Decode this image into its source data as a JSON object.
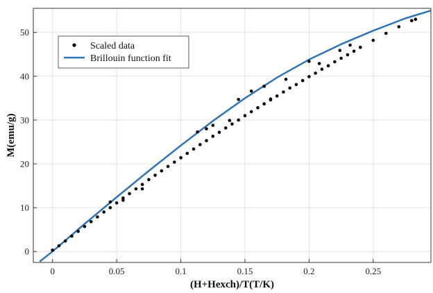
{
  "chart_data": {
    "type": "scatter",
    "title": "",
    "xlabel": "(H+Hexch)/T(T/K)",
    "ylabel": "M(emu/g)",
    "xlim": [
      -0.015,
      0.295
    ],
    "ylim": [
      -2.5,
      55.5
    ],
    "xticks": [
      0,
      0.05,
      0.1,
      0.15,
      0.2,
      0.25
    ],
    "xtick_labels": [
      "0",
      "0.05",
      "0.1",
      "0.15",
      "0.2",
      "0.25"
    ],
    "yticks": [
      0,
      10,
      20,
      30,
      40,
      50
    ],
    "ytick_labels": [
      "0",
      "10",
      "20",
      "30",
      "40",
      "50"
    ],
    "grid": true,
    "legend_position": "top-left",
    "series": [
      {
        "name": "Scaled data",
        "kind": "scatter",
        "color": "#000000",
        "x": [
          0.0,
          0.005,
          0.01,
          0.015,
          0.02,
          0.025,
          0.03,
          0.035,
          0.04,
          0.045,
          0.05,
          0.055,
          0.06,
          0.065,
          0.07,
          0.075,
          0.08,
          0.085,
          0.09,
          0.095,
          0.1,
          0.105,
          0.11,
          0.115,
          0.12,
          0.125,
          0.13,
          0.135,
          0.14,
          0.145,
          0.15,
          0.155,
          0.16,
          0.165,
          0.17,
          0.175,
          0.18,
          0.185,
          0.19,
          0.195,
          0.2,
          0.205,
          0.21,
          0.215,
          0.22,
          0.225,
          0.23,
          0.235,
          0.24,
          0.25,
          0.26,
          0.27,
          0.28,
          0.283,
          0.045,
          0.055,
          0.07,
          0.113,
          0.12,
          0.125,
          0.138,
          0.145,
          0.155,
          0.165,
          0.17,
          0.182,
          0.2,
          0.208,
          0.224,
          0.232
        ],
        "y": [
          0.3,
          1.3,
          2.4,
          3.5,
          4.6,
          5.7,
          6.8,
          7.9,
          9.0,
          10.0,
          11.1,
          12.2,
          13.2,
          14.3,
          15.3,
          16.4,
          17.4,
          18.4,
          19.4,
          20.4,
          21.4,
          22.4,
          23.4,
          24.4,
          25.3,
          26.3,
          27.2,
          28.2,
          29.1,
          30.0,
          31.0,
          31.9,
          32.8,
          33.7,
          34.6,
          35.5,
          36.4,
          37.3,
          38.1,
          39.0,
          39.9,
          40.7,
          41.6,
          42.4,
          43.3,
          44.1,
          44.9,
          45.7,
          46.6,
          48.2,
          49.8,
          51.3,
          52.7,
          53.0,
          11.3,
          11.7,
          14.3,
          27.3,
          28.0,
          28.8,
          29.9,
          34.7,
          36.6,
          37.7,
          34.8,
          39.3,
          43.4,
          42.9,
          45.9,
          47.1
        ]
      },
      {
        "name": "Brillouin function fit",
        "kind": "line",
        "color": "#2e74b5",
        "x": [
          -0.01,
          0.0,
          0.025,
          0.05,
          0.075,
          0.1,
          0.125,
          0.15,
          0.175,
          0.2,
          0.225,
          0.25,
          0.275,
          0.295
        ],
        "y": [
          -2.3,
          0.0,
          6.3,
          12.4,
          18.4,
          24.2,
          29.8,
          35.0,
          39.7,
          43.8,
          47.3,
          50.4,
          53.2,
          55.0
        ]
      }
    ]
  }
}
